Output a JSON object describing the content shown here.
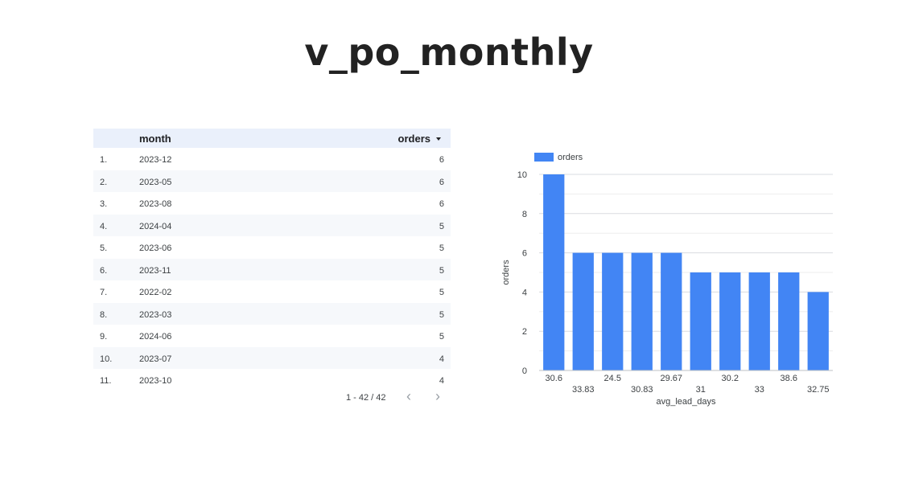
{
  "page": {
    "title": "v_po_monthly"
  },
  "table": {
    "columns": {
      "month": "month",
      "orders": "orders"
    },
    "rows": [
      {
        "index": "1.",
        "month": "2023-12",
        "orders": "6"
      },
      {
        "index": "2.",
        "month": "2023-05",
        "orders": "6"
      },
      {
        "index": "3.",
        "month": "2023-08",
        "orders": "6"
      },
      {
        "index": "4.",
        "month": "2024-04",
        "orders": "5"
      },
      {
        "index": "5.",
        "month": "2023-06",
        "orders": "5"
      },
      {
        "index": "6.",
        "month": "2023-11",
        "orders": "5"
      },
      {
        "index": "7.",
        "month": "2022-02",
        "orders": "5"
      },
      {
        "index": "8.",
        "month": "2023-03",
        "orders": "5"
      },
      {
        "index": "9.",
        "month": "2024-06",
        "orders": "5"
      },
      {
        "index": "10.",
        "month": "2023-07",
        "orders": "4"
      },
      {
        "index": "11.",
        "month": "2023-10",
        "orders": "4"
      }
    ],
    "pagination": {
      "range": "1 - 42 / 42",
      "prev_icon": "chevron-left-icon",
      "next_icon": "chevron-right-icon"
    },
    "sort_icon": "caret-down-icon"
  },
  "chart_data": {
    "type": "bar",
    "categories": [
      "30.6",
      "33.83",
      "24.5",
      "30.83",
      "29.67",
      "31",
      "30.2",
      "33",
      "38.6",
      "32.75"
    ],
    "series": [
      {
        "name": "orders",
        "values": [
          10,
          6,
          6,
          6,
          6,
          5,
          5,
          5,
          5,
          4
        ],
        "color": "#4285f4"
      }
    ],
    "xlabel": "avg_lead_days",
    "ylabel": "orders",
    "ylim": [
      0,
      10
    ],
    "yticks": [
      0,
      2,
      4,
      6,
      8,
      10
    ],
    "grid": true,
    "legend": "top-left"
  }
}
